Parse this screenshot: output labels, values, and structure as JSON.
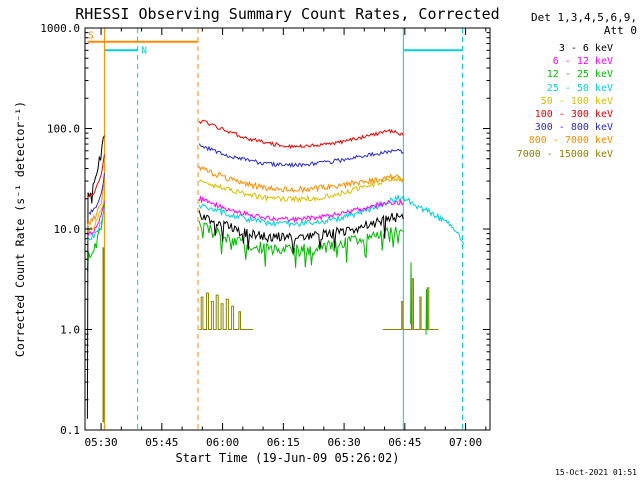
{
  "chart_data": {
    "type": "line",
    "title": "RHESSI Observing Summary Count Rates, Corrected",
    "xlabel": "Start Time (19-Jun-09 05:26:02)",
    "ylabel": "Corrected Count Rate (s⁻¹ detector⁻¹)",
    "y_scale": "log",
    "y_range": [
      0.1,
      1000
    ],
    "x_range_minutes": [
      0,
      100
    ],
    "x_epoch": "05:26:02",
    "grid": false,
    "legend_position": "right-outside",
    "axis_color": "#000000",
    "background": "#ffffff",
    "x_minor_step": 5,
    "x_ticks": [
      {
        "t": 3.97,
        "label": "05:30"
      },
      {
        "t": 18.97,
        "label": "05:45"
      },
      {
        "t": 33.97,
        "label": "06:00"
      },
      {
        "t": 48.97,
        "label": "06:15"
      },
      {
        "t": 63.97,
        "label": "06:30"
      },
      {
        "t": 78.97,
        "label": "06:45"
      },
      {
        "t": 93.97,
        "label": "07:00"
      }
    ],
    "y_ticks": [
      {
        "v": 1000,
        "label": "1000.0"
      },
      {
        "v": 100,
        "label": "100.0"
      },
      {
        "v": 10,
        "label": "10.0"
      },
      {
        "v": 1,
        "label": "1.0"
      },
      {
        "v": 0.1,
        "label": "0.1"
      }
    ],
    "flag_bars": [
      {
        "value": 730,
        "t_start": 0.6,
        "t_end": 27.9,
        "color": "#ff8c00",
        "label": "S",
        "label_t": 1.5,
        "label_dy": -3
      },
      {
        "value": 600,
        "t_start": 4.8,
        "t_end": 13.0,
        "color": "#00d0d8",
        "label": "N",
        "label_t": 14.6,
        "label_dy": 3
      },
      {
        "value": 600,
        "t_start": 78.6,
        "t_end": 93.2,
        "color": "#00d0d8",
        "label": "",
        "label_t": 0,
        "label_dy": 0
      }
    ],
    "vlines": [
      {
        "t": 4.8,
        "color": "#ff8c00",
        "style": "solid"
      },
      {
        "t": 13.0,
        "color": "#00d0d8",
        "style": "dashed"
      },
      {
        "t": 27.9,
        "color": "#ff8c00",
        "style": "dashed"
      },
      {
        "t": 78.6,
        "color": "#00d0d8",
        "style": "solid"
      },
      {
        "t": 93.2,
        "color": "#00d0d8",
        "style": "dashed"
      }
    ],
    "series": [
      {
        "name": "7000 - 15000 keV",
        "color": "#8a8400",
        "noise": 0,
        "step": true,
        "segments": [
          [
            [
              4.3,
              0.12
            ],
            [
              4.45,
              6.5
            ],
            [
              4.7,
              0.12
            ]
          ],
          [
            [
              28.2,
              1
            ],
            [
              28.7,
              2.1
            ],
            [
              29.1,
              1
            ],
            [
              29.7,
              1
            ],
            [
              30,
              2.3
            ],
            [
              30.5,
              1
            ],
            [
              31.2,
              1.9
            ],
            [
              31.7,
              1
            ],
            [
              32.4,
              2.2
            ],
            [
              32.9,
              1
            ],
            [
              33.6,
              1.8
            ],
            [
              34.1,
              1
            ],
            [
              34.9,
              2.0
            ],
            [
              35.4,
              1
            ],
            [
              36.2,
              1.7
            ],
            [
              36.7,
              1
            ],
            [
              38,
              1.5
            ],
            [
              38.4,
              1
            ],
            [
              41.5,
              1
            ]
          ],
          [
            [
              73.5,
              1
            ],
            [
              78,
              1
            ],
            [
              78.2,
              1.9
            ],
            [
              78.5,
              1
            ],
            [
              80.6,
              1
            ],
            [
              80.8,
              3.2
            ],
            [
              81.1,
              1
            ],
            [
              82.5,
              1
            ],
            [
              82.7,
              2.1
            ],
            [
              83,
              1
            ],
            [
              84.4,
              1
            ],
            [
              84.6,
              2.6
            ],
            [
              84.9,
              1
            ],
            [
              87.3,
              1
            ]
          ]
        ]
      },
      {
        "name": "12 - 25 keV",
        "color": "#00bb00",
        "noise": 0.06,
        "spiky": true,
        "segments": [
          [
            [
              0.6,
              5
            ],
            [
              2.5,
              6.5
            ],
            [
              4,
              10
            ],
            [
              4.8,
              18
            ]
          ],
          [
            [
              28.2,
              11
            ],
            [
              30,
              10
            ],
            [
              34,
              8.5
            ],
            [
              40,
              7
            ],
            [
              46,
              6.2
            ],
            [
              52,
              6.1
            ],
            [
              58,
              6.4
            ],
            [
              64,
              7.2
            ],
            [
              70,
              8.5
            ],
            [
              74,
              9.5
            ],
            [
              77,
              10
            ],
            [
              78.6,
              9.5
            ]
          ],
          [
            [
              80.4,
              1
            ],
            [
              80.5,
              5
            ],
            [
              80.65,
              1
            ]
          ],
          [
            [
              84.2,
              1
            ],
            [
              84.35,
              2.8
            ],
            [
              84.5,
              1
            ]
          ]
        ]
      },
      {
        "name": "3 - 6 keV",
        "color": "#000000",
        "noise": 0.05,
        "spiky": true,
        "segments": [
          [
            [
              0.6,
              0.12
            ],
            [
              0.75,
              22
            ],
            [
              2,
              30
            ],
            [
              3.2,
              40
            ],
            [
              4.2,
              62
            ],
            [
              4.8,
              85
            ]
          ],
          [
            [
              28.2,
              14
            ],
            [
              30,
              13
            ],
            [
              34,
              11
            ],
            [
              40,
              9
            ],
            [
              46,
              8.3
            ],
            [
              52,
              8.2
            ],
            [
              58,
              8.6
            ],
            [
              64,
              9.5
            ],
            [
              70,
              11
            ],
            [
              74,
              12.5
            ],
            [
              77,
              13.2
            ],
            [
              78.6,
              12.5
            ]
          ]
        ]
      },
      {
        "name": "25 - 50 keV",
        "color": "#00d0d8",
        "noise": 0.03,
        "segments": [
          [
            [
              0.6,
              7.5
            ],
            [
              2.5,
              9
            ],
            [
              4,
              12
            ],
            [
              4.8,
              16
            ]
          ],
          [
            [
              28.2,
              17
            ],
            [
              30,
              16.5
            ],
            [
              34,
              14.5
            ],
            [
              40,
              12.5
            ],
            [
              46,
              11.3
            ],
            [
              52,
              11.2
            ],
            [
              58,
              11.8
            ],
            [
              64,
              13
            ],
            [
              70,
              15.5
            ],
            [
              74,
              18
            ],
            [
              77,
              20
            ],
            [
              78.6,
              20.5
            ],
            [
              80,
              19
            ],
            [
              82,
              17
            ],
            [
              84,
              15.5
            ],
            [
              86,
              14
            ],
            [
              88,
              12.5
            ],
            [
              90,
              11
            ],
            [
              91.5,
              9.5
            ],
            [
              93,
              8
            ],
            [
              93.6,
              7
            ]
          ]
        ]
      },
      {
        "name": "6 - 12 keV",
        "color": "#ff00ff",
        "noise": 0.025,
        "segments": [
          [
            [
              0.6,
              8.5
            ],
            [
              2.5,
              10
            ],
            [
              4,
              14
            ],
            [
              4.8,
              19
            ]
          ],
          [
            [
              28.2,
              20
            ],
            [
              30,
              19
            ],
            [
              34,
              16.5
            ],
            [
              40,
              14
            ],
            [
              46,
              12.6
            ],
            [
              52,
              12.4
            ],
            [
              58,
              13
            ],
            [
              64,
              14.5
            ],
            [
              70,
              16.5
            ],
            [
              74,
              18
            ],
            [
              77,
              18.6
            ],
            [
              78.6,
              18
            ]
          ]
        ]
      },
      {
        "name": "50 - 100 keV",
        "color": "#d8bf00",
        "noise": 0.025,
        "segments": [
          [
            [
              0.6,
              9.5
            ],
            [
              2.5,
              11
            ],
            [
              4,
              15
            ],
            [
              4.8,
              21
            ]
          ],
          [
            [
              28.2,
              30
            ],
            [
              30,
              28.5
            ],
            [
              34,
              25.5
            ],
            [
              40,
              22
            ],
            [
              46,
              20
            ],
            [
              52,
              19.8
            ],
            [
              58,
              20.5
            ],
            [
              64,
              23
            ],
            [
              70,
              27
            ],
            [
              74,
              30
            ],
            [
              77,
              32
            ],
            [
              78.6,
              31
            ]
          ]
        ]
      },
      {
        "name": "800 - 7000 keV",
        "color": "#ff8c00",
        "noise": 0.03,
        "segments": [
          [
            [
              0.6,
              11
            ],
            [
              2.5,
              13
            ],
            [
              4,
              19
            ],
            [
              4.8,
              28
            ]
          ],
          [
            [
              28.2,
              40
            ],
            [
              30,
              38
            ],
            [
              34,
              33
            ],
            [
              40,
              28
            ],
            [
              46,
              25
            ],
            [
              52,
              24.5
            ],
            [
              58,
              25.5
            ],
            [
              64,
              27.5
            ],
            [
              70,
              30
            ],
            [
              74,
              32
            ],
            [
              77,
              33
            ],
            [
              78.6,
              32
            ]
          ]
        ]
      },
      {
        "name": "300 - 800 keV",
        "color": "#2a2ad0",
        "noise": 0.02,
        "segments": [
          [
            [
              1,
              14
            ],
            [
              3,
              17
            ],
            [
              4.3,
              26
            ],
            [
              4.8,
              36
            ]
          ],
          [
            [
              28.2,
              68
            ],
            [
              30,
              64
            ],
            [
              34,
              56
            ],
            [
              40,
              48
            ],
            [
              46,
              44
            ],
            [
              52,
              43
            ],
            [
              58,
              45
            ],
            [
              64,
              49
            ],
            [
              70,
              55
            ],
            [
              74,
              58
            ],
            [
              77,
              60
            ],
            [
              78.6,
              58
            ]
          ]
        ]
      },
      {
        "name": "100 - 300 keV",
        "color": "#ee0000",
        "noise": 0.018,
        "segments": [
          [
            [
              0.6,
              20
            ],
            [
              2.5,
              24
            ],
            [
              4,
              34
            ],
            [
              4.8,
              55
            ]
          ],
          [
            [
              28.2,
              115
            ],
            [
              29.5,
              118
            ],
            [
              31,
              110
            ],
            [
              34,
              98
            ],
            [
              40,
              80
            ],
            [
              46,
              70
            ],
            [
              52,
              66
            ],
            [
              58,
              68
            ],
            [
              64,
              74
            ],
            [
              70,
              85
            ],
            [
              74,
              93
            ],
            [
              76,
              95
            ],
            [
              77.5,
              90
            ],
            [
              78.6,
              85
            ]
          ]
        ]
      }
    ]
  },
  "legend": {
    "detectors": "Det 1,3,4,5,6,9,",
    "attenuator": "Att 0",
    "entries": [
      {
        "label": "3 - 6 keV",
        "color": "#000000"
      },
      {
        "label": "6 - 12 keV",
        "color": "#ff00ff"
      },
      {
        "label": "12 - 25 keV",
        "color": "#00bb00"
      },
      {
        "label": "25 - 50 keV",
        "color": "#00d0d8"
      },
      {
        "label": "50 - 100 keV",
        "color": "#d8bf00"
      },
      {
        "label": "100 - 300 keV",
        "color": "#ee0000"
      },
      {
        "label": "300 - 800 keV",
        "color": "#2a2ad0"
      },
      {
        "label": "800 - 7000 keV",
        "color": "#ff8c00"
      },
      {
        "label": "7000 - 15000 keV",
        "color": "#8a8400"
      }
    ]
  },
  "footer": {
    "timestamp": "15-Oct-2021 01:51"
  }
}
